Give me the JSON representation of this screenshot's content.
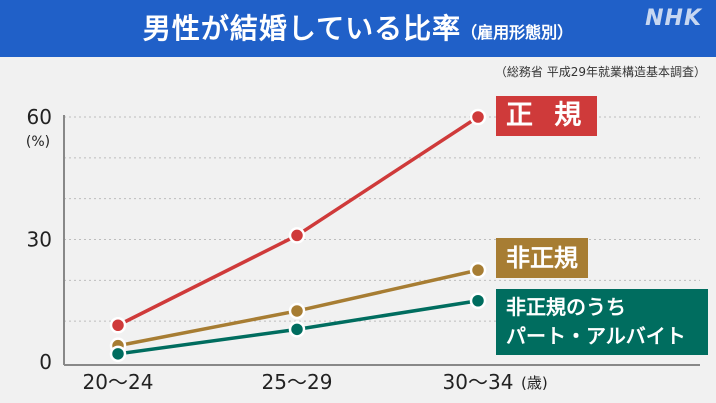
{
  "header": {
    "title": "男性が結婚している比率",
    "subtitle": "（雇用形態別）",
    "logo": "NHK"
  },
  "source": "（総務省 平成29年就業構造基本調査）",
  "colors": {
    "header_bg": "#2060c8",
    "regular": "#cf3a3a",
    "non_regular": "#a77d33",
    "part_time": "#006d5f"
  },
  "chart_data": {
    "type": "line",
    "categories": [
      "20〜24",
      "25〜29",
      "30〜34"
    ],
    "x_unit": "(歳)",
    "yunit": "(%)",
    "ylim": [
      0,
      60
    ],
    "yticks": [
      0,
      30,
      60
    ],
    "series": [
      {
        "name": "正 規",
        "lines": [
          "正 規"
        ],
        "values": [
          9,
          31,
          60
        ]
      },
      {
        "name": "非正規",
        "lines": [
          "非正規"
        ],
        "values": [
          4,
          12.5,
          22.5
        ]
      },
      {
        "name": "非正規のうちパート・アルバイト",
        "lines": [
          "非正規のうち",
          "パート・アルバイト"
        ],
        "values": [
          2,
          8,
          15
        ]
      }
    ]
  }
}
